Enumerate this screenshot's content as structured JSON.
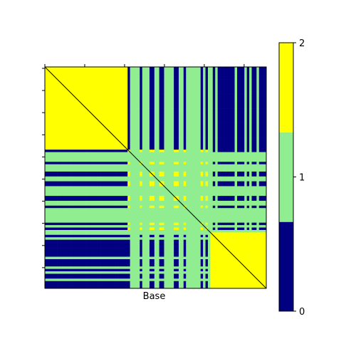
{
  "chart_data": {
    "type": "heatmap",
    "xlabel": "Base",
    "ylabel": "",
    "title": "",
    "colormap": {
      "levels": [
        0,
        1,
        2
      ],
      "colors": [
        "#000080",
        "#90EE90",
        "#FFFF00"
      ]
    },
    "colorbar": {
      "ticks": [
        "0",
        "1",
        "2"
      ]
    },
    "clusters": [
      {
        "start": 0,
        "end": 34,
        "value": 2
      },
      {
        "start": 34,
        "end": 68,
        "value": 2
      },
      {
        "start": 68,
        "end": 91,
        "value": 2
      }
    ],
    "n": 91,
    "within_block_secondary_value": 1,
    "cross_block_base_value": 0,
    "cross_block_stripe_value": 1,
    "x_tick_count": 6,
    "y_tick_count": 10
  }
}
